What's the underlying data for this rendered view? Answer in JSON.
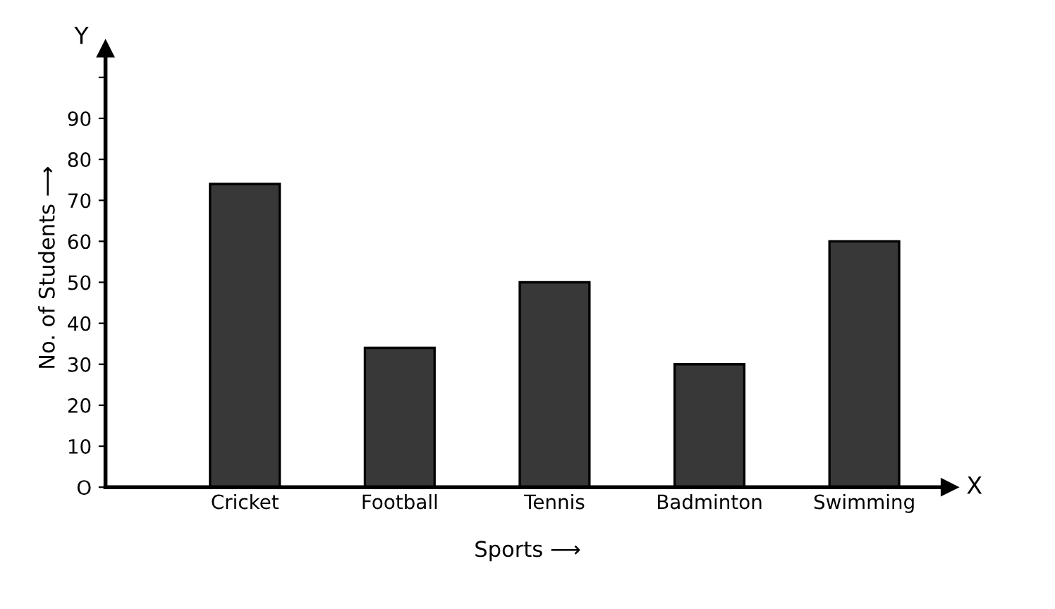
{
  "chart_data": {
    "type": "bar",
    "categories": [
      "Cricket",
      "Football",
      "Tennis",
      "Badminton",
      "Swimming"
    ],
    "values": [
      74,
      34,
      50,
      30,
      60
    ],
    "color": "#383838",
    "xlabel": "Sports ⟶",
    "ylabel": "No. of Students ⟶",
    "ylim": [
      0,
      107
    ],
    "yticks": [
      {
        "value": 0,
        "label": "O"
      },
      10,
      20,
      30,
      40,
      50,
      60,
      70,
      80,
      90,
      {
        "value": 100,
        "label": null
      }
    ],
    "annotations": [
      "X",
      "Y"
    ],
    "grid": false
  }
}
